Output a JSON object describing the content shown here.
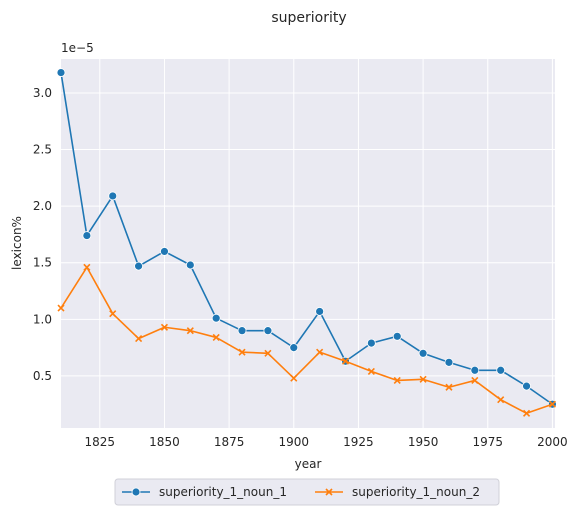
{
  "chart_data": {
    "type": "line",
    "title": "superiority",
    "xlabel": "year",
    "ylabel": "lexicon%",
    "offset_text": "1e−5",
    "xlim": [
      1810,
      2001
    ],
    "ylim": [
      0.04,
      3.3
    ],
    "x_ticks": [
      1825,
      1850,
      1875,
      1900,
      1925,
      1950,
      1975,
      2000
    ],
    "y_ticks": [
      0.5,
      1.0,
      1.5,
      2.0,
      2.5,
      3.0
    ],
    "y_tick_labels": [
      "0.5",
      "1.0",
      "1.5",
      "2.0",
      "2.5",
      "3.0"
    ],
    "grid": true,
    "legend_position": "bottom-center",
    "x": [
      1810,
      1820,
      1830,
      1840,
      1850,
      1860,
      1870,
      1880,
      1890,
      1900,
      1910,
      1920,
      1930,
      1940,
      1950,
      1960,
      1970,
      1980,
      1990,
      2000
    ],
    "series": [
      {
        "name": "superiority_1_noun_1",
        "color": "#1f77b4",
        "marker": "circle",
        "values": [
          3.18,
          1.74,
          2.09,
          1.47,
          1.6,
          1.48,
          1.01,
          0.9,
          0.9,
          0.75,
          1.07,
          0.63,
          0.79,
          0.85,
          0.7,
          0.62,
          0.55,
          0.55,
          0.41,
          0.25
        ]
      },
      {
        "name": "superiority_1_noun_2",
        "color": "#ff7f0e",
        "marker": "x",
        "values": [
          1.1,
          1.46,
          1.05,
          0.83,
          0.93,
          0.9,
          0.84,
          0.71,
          0.7,
          0.48,
          0.71,
          0.63,
          0.54,
          0.46,
          0.47,
          0.4,
          0.46,
          0.29,
          0.17,
          0.25
        ]
      }
    ]
  }
}
